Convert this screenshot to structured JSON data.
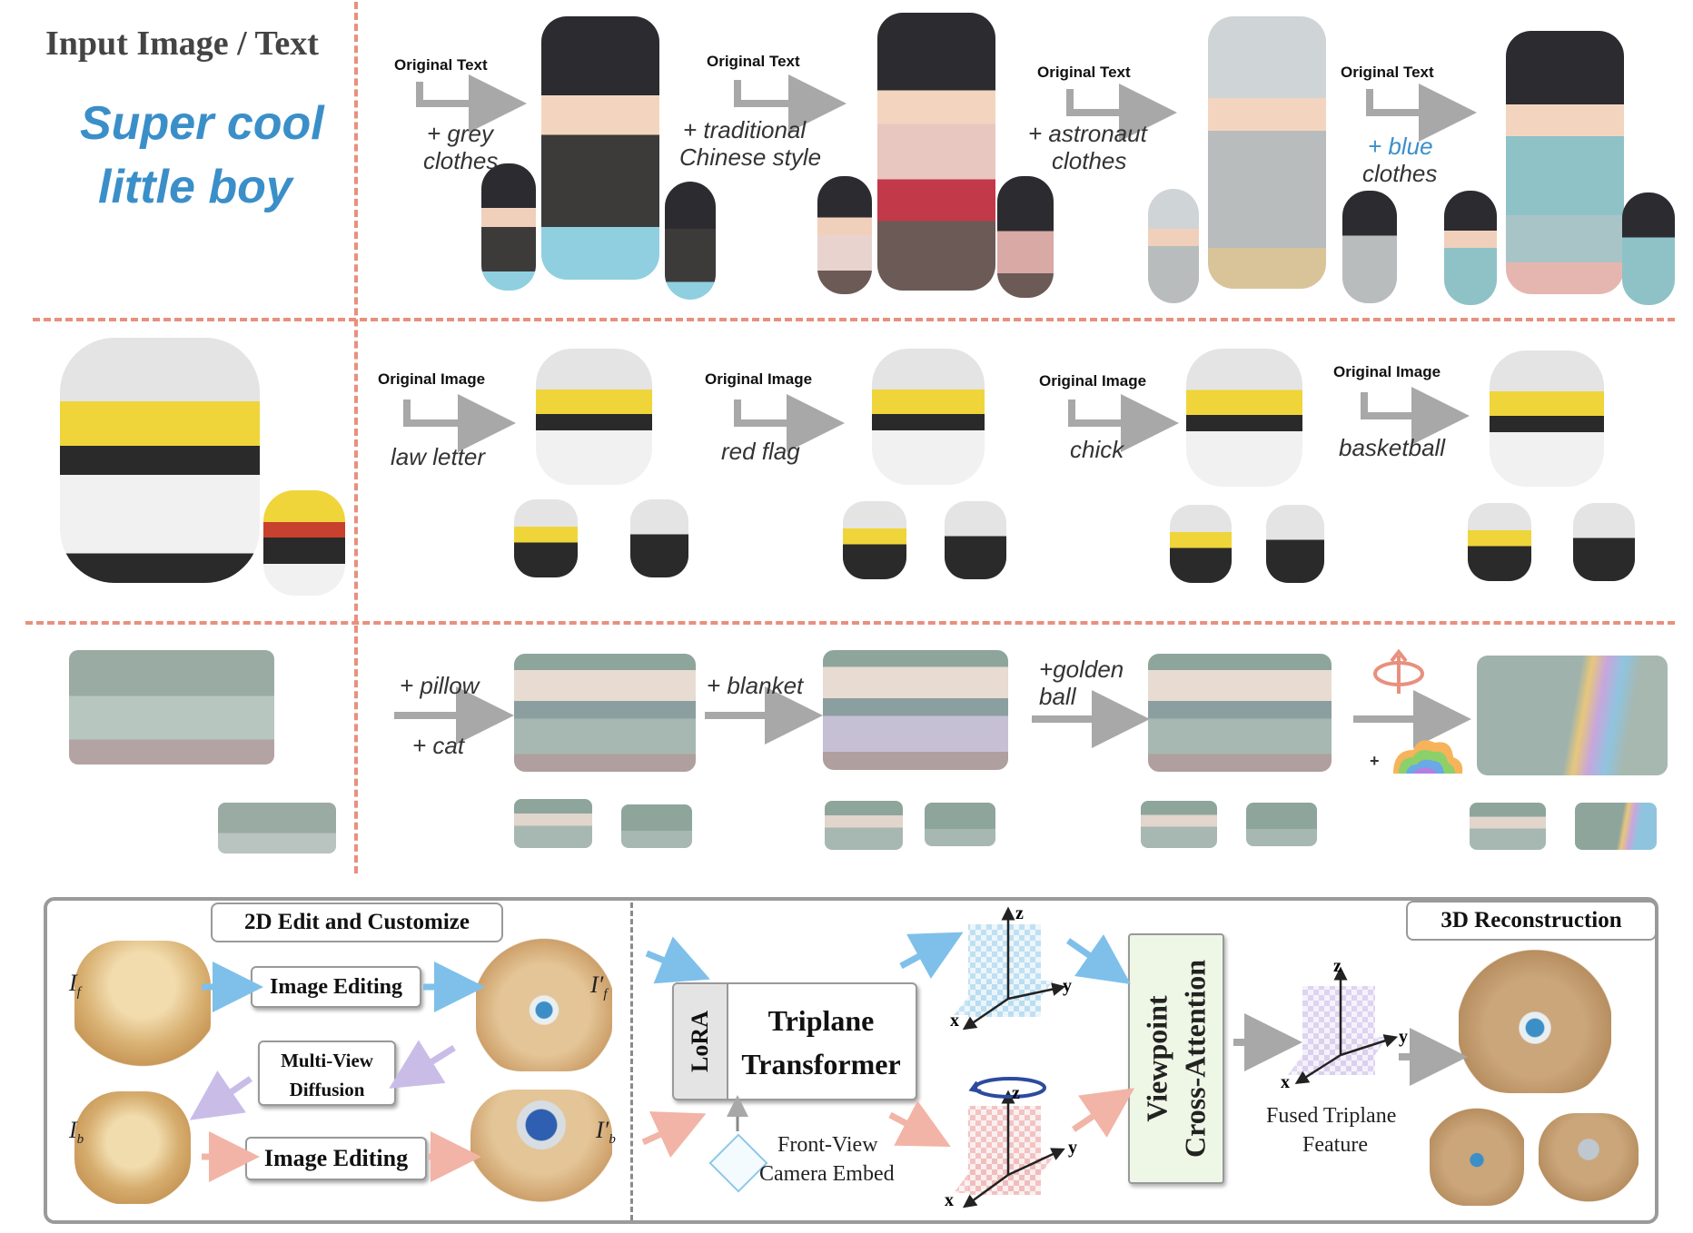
{
  "header": {
    "title": "Input Image / Text",
    "prompt_line1": "Super cool",
    "prompt_line2": "little boy"
  },
  "row1": {
    "steps": [
      {
        "tag": "Original Text",
        "edit_line1": "+ grey",
        "edit_line2": "clothes"
      },
      {
        "tag": "Original Text",
        "edit_line1": "+ traditional",
        "edit_line2": "Chinese style"
      },
      {
        "tag": "Original Text",
        "edit_line1": "+ astronaut",
        "edit_line2": "clothes"
      },
      {
        "tag": "Original Text",
        "edit_line1_prefix": "+ ",
        "edit_line1_word": "blue",
        "edit_line2": "clothes"
      }
    ]
  },
  "row2": {
    "steps": [
      {
        "tag": "Original Image",
        "edit": "law letter"
      },
      {
        "tag": "Original Image",
        "edit": "red flag"
      },
      {
        "tag": "Original Image",
        "edit": "chick"
      },
      {
        "tag": "Original Image",
        "edit": "basketball"
      }
    ]
  },
  "row3": {
    "steps": [
      {
        "edit_line1": "+ pillow",
        "edit_line2": "+ cat"
      },
      {
        "edit_line1": "+ blanket"
      },
      {
        "edit_line1": "+golden",
        "edit_line2": "ball"
      },
      {
        "plus": "+"
      }
    ]
  },
  "pipeline": {
    "left_title": "2D Edit and Customize",
    "right_title": "3D Reconstruction",
    "label_if": "I",
    "label_if_sub": "f",
    "label_ifp": "I′",
    "label_ifp_sub": "f",
    "label_ib": "I",
    "label_ib_sub": "b",
    "label_ibp": "I′",
    "label_ibp_sub": "b",
    "image_editing_top": "Image Editing",
    "multi_view_line1": "Multi-View",
    "multi_view_line2": "Diffusion",
    "image_editing_bottom": "Image Editing",
    "lora": "LoRA",
    "triplane_line1": "Triplane",
    "triplane_line2": "Transformer",
    "camera_line1": "Front-View",
    "camera_line2": "Camera Embed",
    "viewpoint_line1": "Viewpoint",
    "viewpoint_line2": "Cross-Attention",
    "fused_line1": "Fused Triplane",
    "fused_line2": "Feature",
    "axis_x": "x",
    "axis_y": "y",
    "axis_z": "z"
  },
  "colors": {
    "divider": "#e8907e",
    "prompt_blue": "#3b8fc9",
    "arrow_gray": "#a8a8a8",
    "arrow_blue": "#7ec0ea",
    "arrow_pink": "#f2b4a6",
    "arrow_lavender": "#c9bde8",
    "viewpoint_fill": "#eef7e6"
  }
}
